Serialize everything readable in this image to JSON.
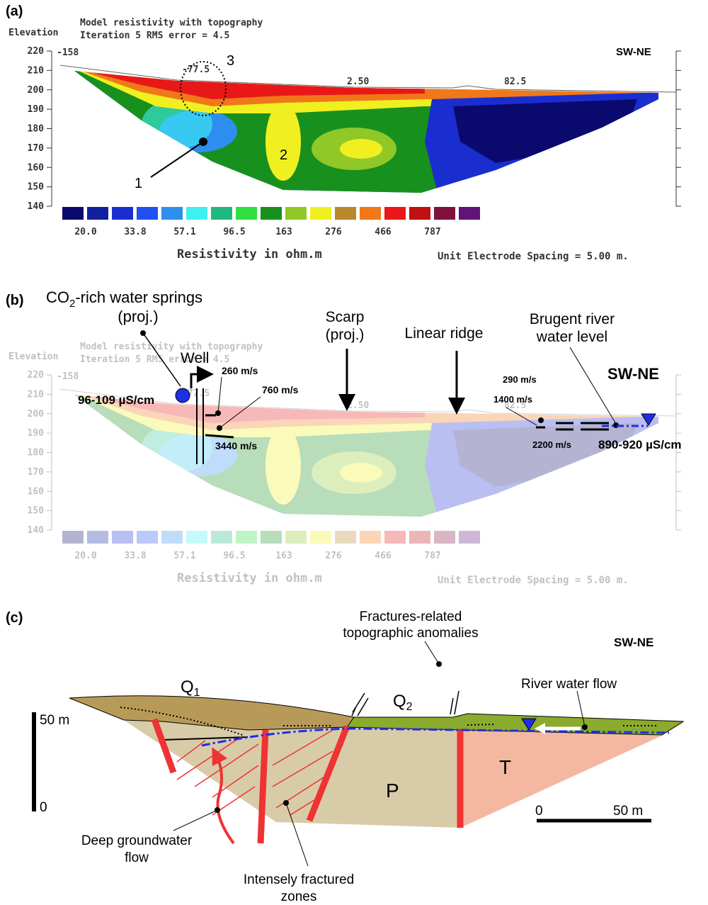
{
  "panel_a": {
    "label": "(a)",
    "axis_title": "Elevation",
    "header": [
      "Model resistivity with topography",
      "Iteration 5 RMS error = 4.5"
    ],
    "elevation_ticks": [
      220,
      210,
      200,
      190,
      180,
      170,
      160,
      150,
      140
    ],
    "distance_ticks": [
      "-158",
      "-77.5",
      "2.50",
      "82.5"
    ],
    "direction": "SW-NE",
    "annotations": [
      "1",
      "2",
      "3"
    ],
    "scale_labels": [
      "20.0",
      "33.8",
      "57.1",
      "96.5",
      "163",
      "276",
      "466",
      "787"
    ],
    "scale_title": "Resistivity in ohm.m",
    "spacing_note": "Unit Electrode Spacing = 5.00 m."
  },
  "panel_b": {
    "label": "(b)",
    "springs": {
      "main": "CO",
      "sub": "2",
      "rest": "-rich water springs",
      "note": "(proj.)"
    },
    "well": "Well",
    "well_conductivity": "96-109 µS/cm",
    "velocities_left": [
      "260 m/s",
      "760 m/s",
      "3440 m/s"
    ],
    "scarp": [
      "Scarp",
      "(proj.)"
    ],
    "ridge": "Linear ridge",
    "river": [
      "Brugent river",
      "water level"
    ],
    "velocities_right": [
      "290 m/s",
      "1400 m/s",
      "2200 m/s"
    ],
    "river_conductivity": "890-920 µS/cm",
    "direction": "SW-NE"
  },
  "panel_c": {
    "label": "(c)",
    "anomalies": [
      "Fractures-related",
      "topographic anomalies"
    ],
    "direction": "SW-NE",
    "q1": {
      "main": "Q",
      "sub": "1"
    },
    "q2": {
      "main": "Q",
      "sub": "2"
    },
    "river_flow": "River water flow",
    "vertical_scale": [
      "50 m",
      "0"
    ],
    "unit_p": "P",
    "unit_t": "T",
    "horizontal_scale": [
      "0",
      "50 m"
    ],
    "groundwater": [
      "Deep groundwater",
      "flow"
    ],
    "fractured": [
      "Intensely fractured",
      "zones"
    ]
  }
}
